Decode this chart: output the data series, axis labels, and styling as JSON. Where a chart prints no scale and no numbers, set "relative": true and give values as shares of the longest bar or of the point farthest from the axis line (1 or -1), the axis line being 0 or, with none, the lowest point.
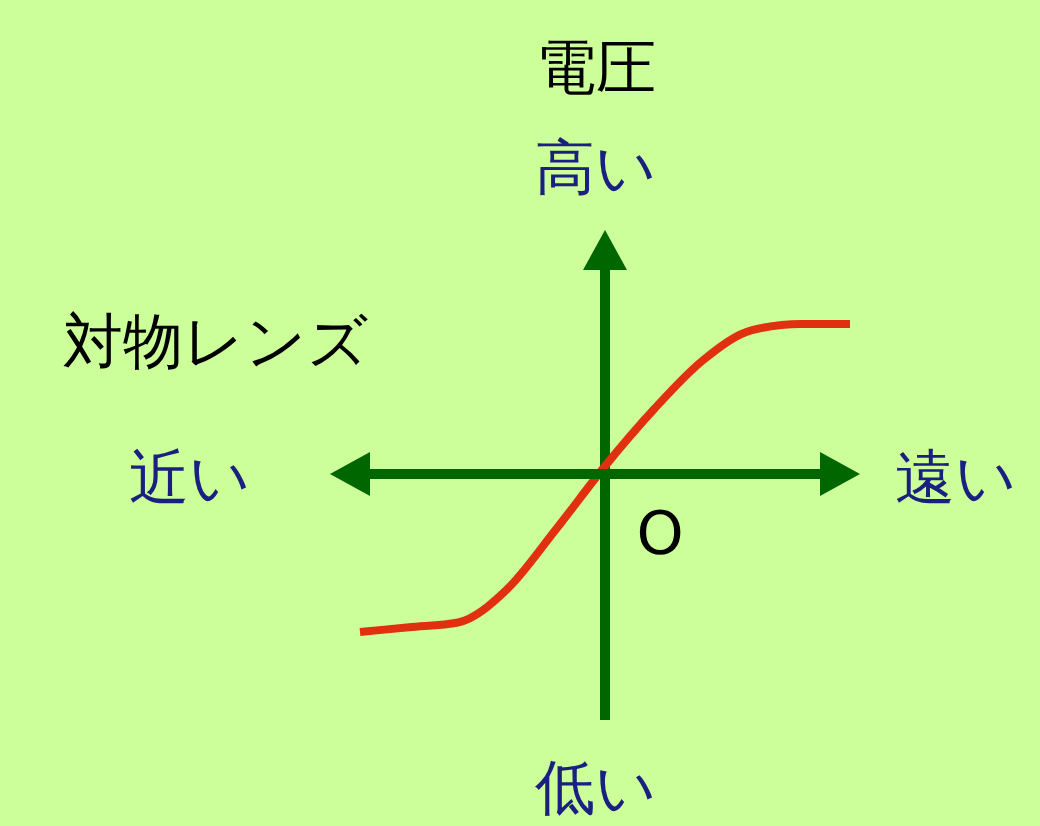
{
  "chart_data": {
    "type": "line",
    "relative": true,
    "xlabel": "対物レンズ",
    "ylabel": "電圧",
    "categories": [
      null,
      null,
      null,
      null,
      null,
      null,
      null,
      null,
      null,
      null,
      null
    ],
    "series": [
      {
        "color": "#e03010",
        "values": [
          -1,
          -0.97,
          -0.94,
          -0.73,
          -0.35,
          0.05,
          0.41,
          0.72,
          0.91,
          0.95,
          0.95
        ]
      }
    ],
    "annotations": [
      "高い",
      "低い",
      "近い",
      "遠い",
      "O"
    ],
    "ref_lines": [
      {
        "axis": "y",
        "value": 0
      }
    ],
    "marker": "none",
    "line_style": "solid"
  }
}
